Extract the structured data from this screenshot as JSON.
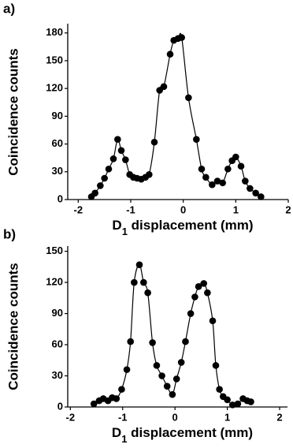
{
  "chart_data": [
    {
      "type": "scatter",
      "panel_label": "a)",
      "y_label": "Coincidence counts",
      "x_label": [
        "D",
        "1",
        " displacement (mm)"
      ],
      "xlim": [
        -2.2,
        2.0
      ],
      "ylim": [
        0,
        190
      ],
      "xticks": [
        -2,
        -1,
        0,
        1,
        2
      ],
      "yticks": [
        0,
        30,
        60,
        90,
        120,
        150,
        180
      ],
      "color": "#000000",
      "x": [
        -1.75,
        -1.68,
        -1.58,
        -1.5,
        -1.42,
        -1.33,
        -1.25,
        -1.18,
        -1.1,
        -1.02,
        -0.95,
        -0.88,
        -0.8,
        -0.72,
        -0.65,
        -0.55,
        -0.45,
        -0.37,
        -0.25,
        -0.18,
        -0.1,
        -0.03,
        0.1,
        0.25,
        0.35,
        0.43,
        0.55,
        0.65,
        0.75,
        0.85,
        0.93,
        1.0,
        1.1,
        1.18,
        1.27,
        1.38,
        1.48
      ],
      "values": [
        3,
        7,
        15,
        23,
        33,
        44,
        65,
        53,
        43,
        27,
        24,
        23,
        22,
        24,
        27,
        62,
        118,
        122,
        157,
        172,
        174,
        175,
        110,
        65,
        33,
        24,
        16,
        20,
        18,
        33,
        42,
        46,
        36,
        20,
        12,
        7,
        3
      ]
    },
    {
      "type": "scatter",
      "panel_label": "b)",
      "y_label": "Coincidence counts",
      "x_label": [
        "D",
        "1",
        " displacement (mm)"
      ],
      "xlim": [
        -2.05,
        2.15
      ],
      "ylim": [
        0,
        155
      ],
      "xticks": [
        -2,
        -1,
        0,
        1,
        2
      ],
      "yticks": [
        0,
        30,
        60,
        90,
        120,
        150
      ],
      "color": "#000000",
      "x": [
        -1.55,
        -1.45,
        -1.37,
        -1.28,
        -1.2,
        -1.12,
        -1.02,
        -0.92,
        -0.85,
        -0.78,
        -0.68,
        -0.6,
        -0.52,
        -0.43,
        -0.35,
        -0.25,
        -0.15,
        -0.05,
        0.03,
        0.12,
        0.2,
        0.3,
        0.38,
        0.45,
        0.55,
        0.62,
        0.72,
        0.78,
        0.85,
        0.92,
        1.0,
        1.1,
        1.2,
        1.3,
        1.38,
        1.45
      ],
      "values": [
        3,
        6,
        8,
        6,
        9,
        8,
        17,
        36,
        63,
        120,
        137,
        120,
        110,
        62,
        40,
        30,
        20,
        12,
        27,
        43,
        63,
        90,
        106,
        116,
        119,
        110,
        83,
        40,
        17,
        10,
        7,
        2,
        3,
        8,
        6,
        5
      ]
    }
  ]
}
